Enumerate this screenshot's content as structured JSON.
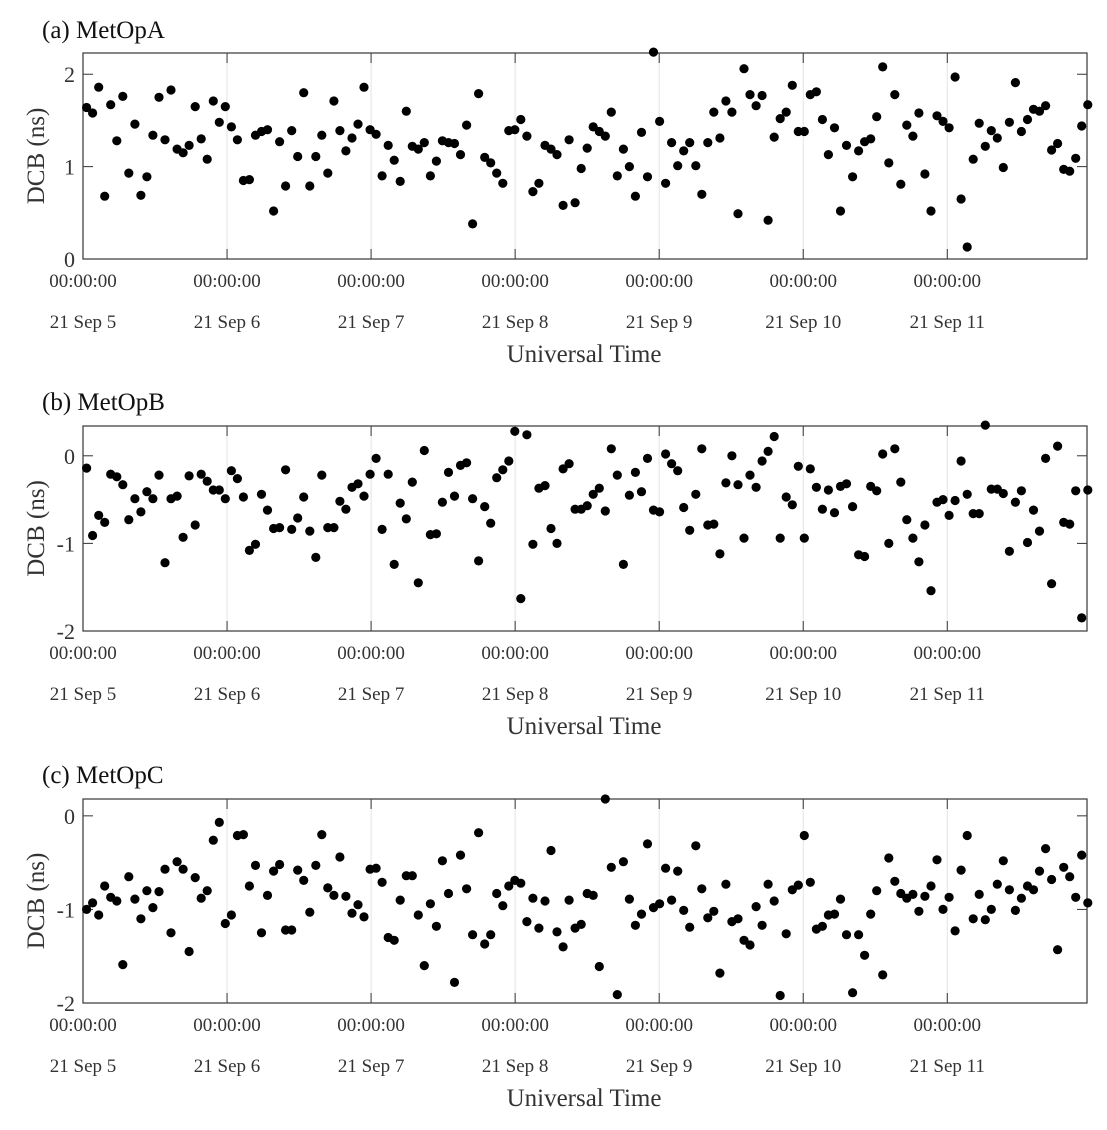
{
  "chart_data": [
    {
      "type": "scatter",
      "title": "(a) MetOpA",
      "xlabel": "Universal Time",
      "ylabel": "DCB (ns)",
      "xlim": [
        0,
        6.97
      ],
      "ylim": [
        0,
        2.23
      ],
      "yticks": [
        0,
        1,
        2
      ],
      "ytick_labels": [
        "0",
        "1",
        "2"
      ],
      "xticks": [
        0,
        1,
        2,
        3,
        4,
        5,
        6
      ],
      "xtick_times": [
        "00:00:00",
        "00:00:00",
        "00:00:00",
        "00:00:00",
        "00:00:00",
        "00:00:00",
        "00:00:00"
      ],
      "xtick_dates": [
        "21 Sep 5",
        "21 Sep 6",
        "21 Sep 7",
        "21 Sep 8",
        "21 Sep 9",
        "21 Sep 10",
        "21 Sep 11"
      ],
      "grid": "vertical",
      "x_unit": "days since 21 Sep 5 00:00:00",
      "x_start": 0.025,
      "x_step": 0.04187,
      "y": [
        1.64,
        1.58,
        1.86,
        0.68,
        1.67,
        1.28,
        1.76,
        0.93,
        1.46,
        0.69,
        0.89,
        1.34,
        1.75,
        1.29,
        1.83,
        1.19,
        1.15,
        1.23,
        1.65,
        1.3,
        1.08,
        1.71,
        1.48,
        1.65,
        1.43,
        1.29,
        0.85,
        0.86,
        1.34,
        1.38,
        1.4,
        0.52,
        1.27,
        0.79,
        1.39,
        1.11,
        1.8,
        0.79,
        1.11,
        1.34,
        0.93,
        1.71,
        1.39,
        1.17,
        1.31,
        1.46,
        1.86,
        1.4,
        1.35,
        0.9,
        1.23,
        1.07,
        0.84,
        1.6,
        1.22,
        1.19,
        1.26,
        0.9,
        1.06,
        1.28,
        1.26,
        1.25,
        1.13,
        1.45,
        0.38,
        1.79,
        1.1,
        1.04,
        0.93,
        0.82,
        1.39,
        1.4,
        1.51,
        1.33,
        0.73,
        0.82,
        1.23,
        1.19,
        1.13,
        0.58,
        1.29,
        0.61,
        0.98,
        1.2,
        1.43,
        1.38,
        1.33,
        1.59,
        0.9,
        1.19,
        1.0,
        0.68,
        1.37,
        0.89,
        2.24,
        1.49,
        0.82,
        1.26,
        1.01,
        1.17,
        1.26,
        1.01,
        0.7,
        1.26,
        1.59,
        1.31,
        1.71,
        1.59,
        0.49,
        2.06,
        1.78,
        1.66,
        1.77,
        0.42,
        1.32,
        1.52,
        1.59,
        1.88,
        1.38,
        1.38,
        1.78,
        1.81,
        1.51,
        1.13,
        1.42,
        0.52,
        1.23,
        0.89,
        1.17,
        1.27,
        1.3,
        1.54,
        2.08,
        1.04,
        1.78,
        0.81,
        1.45,
        1.33,
        1.58,
        0.92,
        0.52,
        1.55,
        1.49,
        1.42,
        1.97,
        0.65,
        0.13,
        1.08,
        1.47,
        1.22,
        1.39,
        1.31,
        0.99,
        1.48,
        1.91,
        1.38,
        1.51,
        1.62,
        1.6,
        1.66,
        1.18,
        1.25,
        0.97,
        0.95,
        1.09,
        1.44,
        1.67
      ]
    },
    {
      "type": "scatter",
      "title": "(b) MetOpB",
      "xlabel": "Universal Time",
      "ylabel": "DCB (ns)",
      "xlim": [
        0,
        6.97
      ],
      "ylim": [
        -2,
        0.34
      ],
      "yticks": [
        -2,
        -1,
        0
      ],
      "ytick_labels": [
        "-2",
        "-1",
        "0"
      ],
      "xticks": [
        0,
        1,
        2,
        3,
        4,
        5,
        6
      ],
      "xtick_times": [
        "00:00:00",
        "00:00:00",
        "00:00:00",
        "00:00:00",
        "00:00:00",
        "00:00:00",
        "00:00:00"
      ],
      "xtick_dates": [
        "21 Sep 5",
        "21 Sep 6",
        "21 Sep 7",
        "21 Sep 8",
        "21 Sep 9",
        "21 Sep 10",
        "21 Sep 11"
      ],
      "grid": "vertical",
      "x_unit": "days since 21 Sep 5 00:00:00",
      "x_start": 0.025,
      "x_step": 0.04187,
      "y": [
        -0.14,
        -0.91,
        -0.68,
        -0.76,
        -0.21,
        -0.24,
        -0.33,
        -0.73,
        -0.49,
        -0.64,
        -0.41,
        -0.49,
        -0.22,
        -1.22,
        -0.49,
        -0.46,
        -0.93,
        -0.23,
        -0.79,
        -0.21,
        -0.29,
        -0.39,
        -0.39,
        -0.49,
        -0.17,
        -0.26,
        -0.47,
        -1.08,
        -1.01,
        -0.44,
        -0.62,
        -0.83,
        -0.82,
        -0.16,
        -0.84,
        -0.71,
        -0.47,
        -0.86,
        -1.16,
        -0.22,
        -0.82,
        -0.82,
        -0.52,
        -0.61,
        -0.36,
        -0.32,
        -0.46,
        -0.21,
        -0.03,
        -0.84,
        -0.21,
        -1.24,
        -0.54,
        -0.72,
        -0.3,
        -1.45,
        0.06,
        -0.9,
        -0.89,
        -0.53,
        -0.19,
        -0.46,
        -0.11,
        -0.08,
        -0.49,
        -1.2,
        -0.58,
        -0.77,
        -0.25,
        -0.16,
        -0.06,
        0.28,
        -1.63,
        0.24,
        -1.01,
        -0.37,
        -0.34,
        -0.83,
        -1.0,
        -0.15,
        -0.09,
        -0.61,
        -0.61,
        -0.57,
        -0.44,
        -0.37,
        -0.63,
        0.08,
        -0.22,
        -1.24,
        -0.45,
        -0.19,
        -0.41,
        -0.03,
        -0.62,
        -0.64,
        0.02,
        -0.09,
        -0.17,
        -0.59,
        -0.85,
        -0.44,
        0.08,
        -0.79,
        -0.78,
        -1.12,
        -0.31,
        0.0,
        -0.33,
        -0.94,
        -0.22,
        -0.36,
        -0.06,
        0.05,
        0.22,
        -0.94,
        -0.47,
        -0.56,
        -0.12,
        -0.94,
        -0.15,
        -0.36,
        -0.61,
        -0.39,
        -0.65,
        -0.35,
        -0.32,
        -0.58,
        -1.13,
        -1.15,
        -0.35,
        -0.4,
        0.02,
        -1.0,
        0.08,
        -0.3,
        -0.73,
        -0.94,
        -1.21,
        -0.79,
        -1.54,
        -0.53,
        -0.5,
        -0.68,
        -0.51,
        -0.06,
        -0.44,
        -0.66,
        -0.66,
        0.35,
        -0.38,
        -0.38,
        -0.43,
        -1.09,
        -0.53,
        -0.4,
        -0.99,
        -0.62,
        -0.86,
        -0.03,
        -1.46,
        0.11,
        -0.76,
        -0.78,
        -0.4,
        -1.85,
        -0.39
      ]
    },
    {
      "type": "scatter",
      "title": "(c) MetOpC",
      "xlabel": "Universal Time",
      "ylabel": "DCB (ns)",
      "xlim": [
        0,
        6.97
      ],
      "ylim": [
        -2,
        0.18
      ],
      "yticks": [
        -2,
        -1,
        0
      ],
      "ytick_labels": [
        "-2",
        "-1",
        "0"
      ],
      "xticks": [
        0,
        1,
        2,
        3,
        4,
        5,
        6
      ],
      "xtick_times": [
        "00:00:00",
        "00:00:00",
        "00:00:00",
        "00:00:00",
        "00:00:00",
        "00:00:00",
        "00:00:00"
      ],
      "xtick_dates": [
        "21 Sep 5",
        "21 Sep 6",
        "21 Sep 7",
        "21 Sep 8",
        "21 Sep 9",
        "21 Sep 10",
        "21 Sep 11"
      ],
      "grid": "vertical",
      "x_unit": "days since 21 Sep 5 00:00:00",
      "x_start": 0.025,
      "x_step": 0.04187,
      "y": [
        -1.0,
        -0.93,
        -1.06,
        -0.75,
        -0.87,
        -0.91,
        -1.59,
        -0.65,
        -0.89,
        -1.1,
        -0.8,
        -0.98,
        -0.81,
        -0.57,
        -1.25,
        -0.49,
        -0.57,
        -1.45,
        -0.66,
        -0.88,
        -0.8,
        -0.26,
        -0.07,
        -1.15,
        -1.06,
        -0.21,
        -0.2,
        -0.75,
        -0.53,
        -1.25,
        -0.85,
        -0.59,
        -0.52,
        -1.22,
        -1.22,
        -0.58,
        -0.69,
        -1.03,
        -0.53,
        -0.2,
        -0.77,
        -0.85,
        -0.44,
        -0.86,
        -1.04,
        -0.95,
        -1.08,
        -0.57,
        -0.56,
        -0.71,
        -1.3,
        -1.33,
        -0.9,
        -0.64,
        -0.64,
        -1.06,
        -1.6,
        -0.94,
        -1.18,
        -0.48,
        -0.83,
        -1.78,
        -0.42,
        -0.78,
        -1.27,
        -0.18,
        -1.37,
        -1.27,
        -0.83,
        -0.96,
        -0.75,
        -0.69,
        -0.72,
        -1.13,
        -0.88,
        -1.2,
        -0.91,
        -0.37,
        -1.24,
        -1.4,
        -0.9,
        -1.2,
        -1.16,
        -0.83,
        -0.85,
        -1.61,
        0.18,
        -0.55,
        -1.91,
        -0.49,
        -0.89,
        -1.17,
        -1.05,
        -0.3,
        -0.98,
        -0.94,
        -0.56,
        -0.9,
        -0.59,
        -1.01,
        -1.19,
        -0.32,
        -0.78,
        -1.09,
        -1.02,
        -1.68,
        -0.73,
        -1.13,
        -1.1,
        -1.33,
        -1.38,
        -0.97,
        -1.17,
        -0.73,
        -0.91,
        -1.92,
        -1.26,
        -0.79,
        -0.74,
        -0.21,
        -0.71,
        -1.21,
        -1.18,
        -1.06,
        -1.05,
        -0.89,
        -1.27,
        -1.89,
        -1.27,
        -1.49,
        -1.05,
        -0.8,
        -1.7,
        -0.45,
        -0.7,
        -0.83,
        -0.88,
        -0.84,
        -1.02,
        -0.86,
        -0.75,
        -0.47,
        -1.0,
        -0.87,
        -1.23,
        -0.58,
        -0.21,
        -1.1,
        -0.84,
        -1.11,
        -1.0,
        -0.73,
        -0.48,
        -0.79,
        -1.01,
        -0.88,
        -0.75,
        -0.79,
        -0.59,
        -0.35,
        -0.68,
        -1.43,
        -0.55,
        -0.65,
        -0.87,
        -0.42,
        -0.93
      ]
    }
  ]
}
